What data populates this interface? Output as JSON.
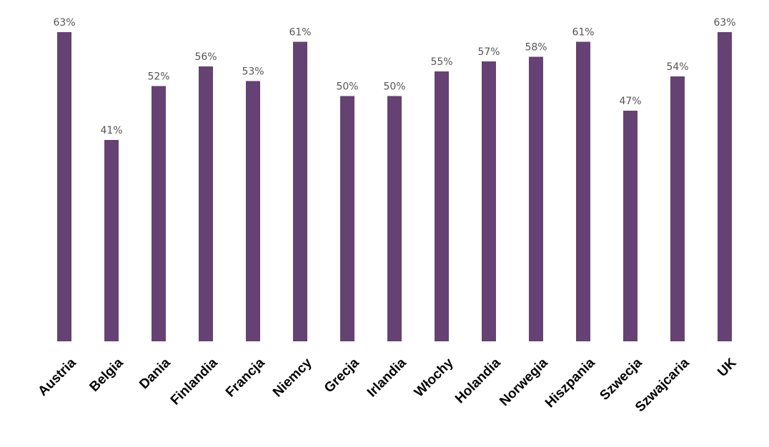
{
  "chart_data": {
    "type": "bar",
    "categories": [
      "Austria",
      "Belgia",
      "Dania",
      "Finlandia",
      "Francja",
      "Niemcy",
      "Grecja",
      "Irlandia",
      "Włochy",
      "Holandia",
      "Norwegia",
      "Hiszpania",
      "Szwecja",
      "Szwajcaria",
      "UK"
    ],
    "values": [
      63,
      41,
      52,
      56,
      53,
      61,
      50,
      50,
      55,
      57,
      58,
      61,
      47,
      54,
      63
    ],
    "value_labels": [
      "63%",
      "41%",
      "52%",
      "56%",
      "53%",
      "61%",
      "50%",
      "50%",
      "55%",
      "57%",
      "58%",
      "61%",
      "47%",
      "54%",
      "63%"
    ],
    "title": "",
    "xlabel": "",
    "ylabel": "",
    "ylim": [
      0,
      63
    ],
    "grid": false,
    "legend": "none",
    "bar_color": "#654273"
  }
}
